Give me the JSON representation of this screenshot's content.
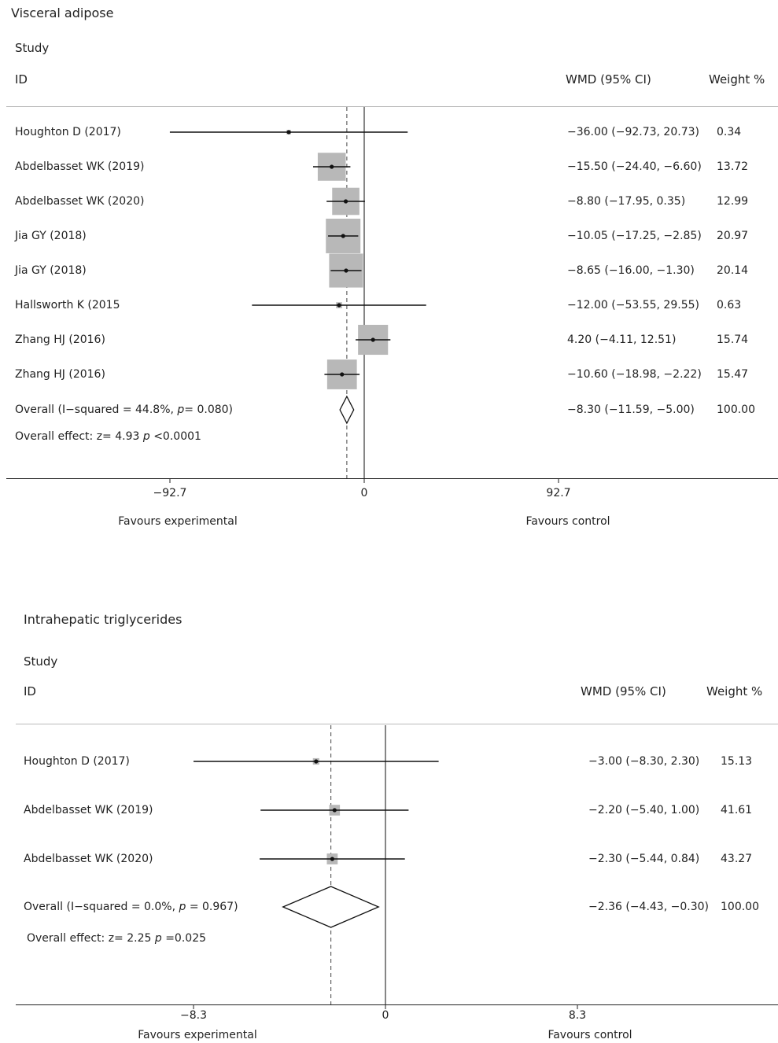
{
  "chart_data": [
    {
      "type": "forest",
      "title": "Visceral adipose",
      "header_study": "Study",
      "header_id": "ID",
      "header_effect": "WMD (95% CI)",
      "header_weight": "Weight %",
      "studies": [
        {
          "label": "Houghton D (2017)",
          "est": -36.0,
          "lo": -92.73,
          "hi": 20.73,
          "ci_text": "−36.00 (−92.73, 20.73)",
          "weight": "0.34",
          "w": 0.34
        },
        {
          "label": "Abdelbasset WK (2019)",
          "est": -15.5,
          "lo": -24.4,
          "hi": -6.6,
          "ci_text": "−15.50 (−24.40, −6.60)",
          "weight": "13.72",
          "w": 13.72
        },
        {
          "label": "Abdelbasset WK (2020)",
          "est": -8.8,
          "lo": -17.95,
          "hi": 0.35,
          "ci_text": "−8.80 (−17.95, 0.35)",
          "weight": "12.99",
          "w": 12.99
        },
        {
          "label": "Jia GY (2018)",
          "est": -10.05,
          "lo": -17.25,
          "hi": -2.85,
          "ci_text": "−10.05 (−17.25, −2.85)",
          "weight": "20.97",
          "w": 20.97
        },
        {
          "label": "Jia GY (2018)",
          "est": -8.65,
          "lo": -16.0,
          "hi": -1.3,
          "ci_text": "−8.65 (−16.00, −1.30)",
          "weight": "20.14",
          "w": 20.14
        },
        {
          "label": "Hallsworth K (2015",
          "est": -12.0,
          "lo": -53.55,
          "hi": 29.55,
          "ci_text": "−12.00 (−53.55, 29.55)",
          "weight": "0.63",
          "w": 0.63
        },
        {
          "label": "Zhang HJ (2016)",
          "est": 4.2,
          "lo": -4.11,
          "hi": 12.51,
          "ci_text": "4.20 (−4.11, 12.51)",
          "weight": "15.74",
          "w": 15.74
        },
        {
          "label": "Zhang HJ (2016)",
          "est": -10.6,
          "lo": -18.98,
          "hi": -2.22,
          "ci_text": "−10.60 (−18.98, −2.22)",
          "weight": "15.47",
          "w": 15.47
        }
      ],
      "overall": {
        "label_prefix": "Overall  (I−squared = 44.8%, ",
        "label_p": "p",
        "label_suffix": "= 0.080)",
        "est": -8.3,
        "lo": -11.59,
        "hi": -5.0,
        "ci_text": "−8.30 (−11.59, −5.00)",
        "weight": "100.00"
      },
      "effect": {
        "prefix": "Overall effect: z= 4.93  ",
        "p": "p",
        "suffix": " <0.0001"
      },
      "xlim": [
        -92.7,
        92.7
      ],
      "ticks": [
        {
          "v": -92.7,
          "label": "−92.7"
        },
        {
          "v": 0,
          "label": "0"
        },
        {
          "v": 92.7,
          "label": "92.7"
        }
      ],
      "favours_left": "Favours experimental",
      "favours_right": "Favours control"
    },
    {
      "type": "forest",
      "title": "Intrahepatic triglycerides",
      "header_study": "Study",
      "header_id": "ID",
      "header_effect": "WMD (95% CI)",
      "header_weight": "Weight %",
      "studies": [
        {
          "label": "Houghton D (2017)",
          "est": -3.0,
          "lo": -8.3,
          "hi": 2.3,
          "ci_text": "−3.00 (−8.30, 2.30)",
          "weight": "15.13",
          "w": 15.13
        },
        {
          "label": "Abdelbasset WK (2019)",
          "est": -2.2,
          "lo": -5.4,
          "hi": 1.0,
          "ci_text": "−2.20 (−5.40, 1.00)",
          "weight": "41.61",
          "w": 41.61
        },
        {
          "label": "Abdelbasset WK (2020)",
          "est": -2.3,
          "lo": -5.44,
          "hi": 0.84,
          "ci_text": "−2.30 (−5.44, 0.84)",
          "weight": "43.27",
          "w": 43.27
        }
      ],
      "overall": {
        "label_prefix": "Overall  (I−squared = 0.0%, ",
        "label_p": "p",
        "label_suffix": " = 0.967)",
        "est": -2.36,
        "lo": -4.43,
        "hi": -0.3,
        "ci_text": "−2.36 (−4.43, −0.30)",
        "weight": "100.00"
      },
      "effect": {
        "prefix": "Overall effect: z= 2.25  ",
        "p": "p",
        "suffix": " =0.025"
      },
      "xlim": [
        -8.3,
        8.3
      ],
      "ticks": [
        {
          "v": -8.3,
          "label": "−8.3"
        },
        {
          "v": 0,
          "label": "0"
        },
        {
          "v": 8.3,
          "label": "8.3"
        }
      ],
      "favours_left": "Favours experimental",
      "favours_right": "Favours control"
    }
  ]
}
